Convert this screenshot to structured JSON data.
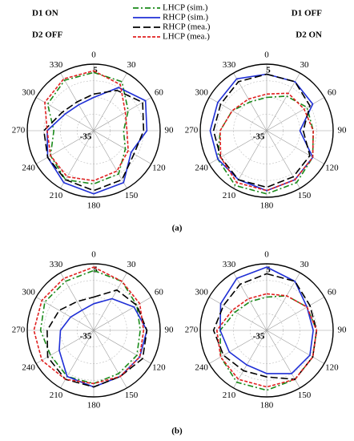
{
  "captions": [
    "(a)",
    "(b)"
  ],
  "chart_data": [
    {
      "type": "polar",
      "annotations": [
        "D1 ON",
        "D2 OFF"
      ],
      "theta": [
        0,
        30,
        60,
        90,
        120,
        150,
        180,
        210,
        240,
        270,
        300,
        330
      ],
      "thetaticks": [
        0,
        30,
        60,
        90,
        120,
        150,
        180,
        210,
        240,
        270,
        300,
        330
      ],
      "rlim": [
        -35,
        5
      ],
      "rticks": [
        -35,
        5
      ],
      "rgrid": [
        -25,
        -15,
        -5
      ],
      "series": [
        {
          "name": "LHCP (sim.)",
          "color": "#1a8a1a",
          "dash": "7,3,2,3",
          "values": [
            0,
            -1,
            -11,
            -17,
            -13,
            -5,
            -3,
            -1,
            -5,
            -11,
            -3,
            0
          ]
        },
        {
          "name": "RHCP (sim.)",
          "color": "#1f2fd6",
          "dash": "none",
          "values": [
            -15,
            -5,
            1,
            -3,
            -9,
            1,
            3,
            1,
            -3,
            -7,
            -15,
            -17
          ]
        },
        {
          "name": "RHCP (mea.)",
          "color": "#000000",
          "dash": "9,4",
          "values": [
            -13,
            -7,
            -1,
            -5,
            -7,
            -1,
            1,
            -1,
            -3,
            -5,
            -13,
            -15
          ]
        },
        {
          "name": "LHCP (mea.)",
          "color": "#e02020",
          "dash": "4,2",
          "values": [
            1,
            -3,
            -13,
            -15,
            -11,
            -7,
            -5,
            -3,
            -5,
            -7,
            -1,
            1
          ]
        }
      ]
    },
    {
      "type": "polar",
      "annotations": [
        "D1 OFF",
        "D2 ON"
      ],
      "theta": [
        0,
        30,
        60,
        90,
        120,
        150,
        180,
        210,
        240,
        270,
        300,
        330
      ],
      "thetaticks": [
        0,
        30,
        60,
        90,
        120,
        150,
        180,
        210,
        240,
        270,
        300,
        330
      ],
      "rlim": [
        -35,
        5
      ],
      "rticks": [
        -35,
        5
      ],
      "rgrid": [
        -25,
        -15,
        -5
      ],
      "series": [
        {
          "color": "#1a8a1a",
          "dash": "7,3,2,3",
          "values": [
            -15,
            -11,
            -7,
            -7,
            -3,
            1,
            3,
            3,
            -1,
            -7,
            -11,
            -15
          ]
        },
        {
          "color": "#1f2fd6",
          "dash": "none",
          "values": [
            -1,
            -1,
            -3,
            -15,
            -3,
            -1,
            1,
            -1,
            -1,
            -1,
            -1,
            1
          ]
        },
        {
          "color": "#000000",
          "dash": "9,4",
          "values": [
            -1,
            -1,
            -5,
            -13,
            -5,
            -3,
            -1,
            -1,
            -3,
            -3,
            -3,
            -1
          ]
        },
        {
          "color": "#e02020",
          "dash": "4,2",
          "values": [
            -13,
            -9,
            -9,
            -7,
            -3,
            -1,
            1,
            1,
            -3,
            -7,
            -11,
            -13
          ]
        }
      ]
    },
    {
      "type": "polar",
      "theta": [
        0,
        30,
        60,
        90,
        120,
        150,
        180,
        210,
        240,
        270,
        300,
        330
      ],
      "thetaticks": [
        0,
        30,
        60,
        90,
        120,
        150,
        180,
        210,
        240,
        270,
        300,
        330
      ],
      "rlim": [
        -35,
        5
      ],
      "rticks": [
        -35,
        5
      ],
      "rgrid": [
        -25,
        -15,
        -5
      ],
      "series": [
        {
          "color": "#1a8a1a",
          "dash": "7,3,2,3",
          "values": [
            1,
            -1,
            -5,
            -7,
            -5,
            -5,
            -3,
            -3,
            -5,
            -3,
            -1,
            -1
          ]
        },
        {
          "color": "#1f2fd6",
          "dash": "none",
          "values": [
            -19,
            -13,
            -7,
            -3,
            -3,
            -3,
            -1,
            -3,
            -11,
            -15,
            -19,
            -21
          ]
        },
        {
          "color": "#000000",
          "dash": "9,4",
          "values": [
            -15,
            -7,
            -5,
            -3,
            -1,
            -3,
            -1,
            -1,
            -3,
            -7,
            -11,
            -15
          ]
        },
        {
          "color": "#e02020",
          "dash": "4,2",
          "values": [
            3,
            -1,
            -3,
            -5,
            -3,
            -3,
            -3,
            -1,
            1,
            1,
            1,
            1
          ]
        }
      ]
    },
    {
      "type": "polar",
      "theta": [
        0,
        30,
        60,
        90,
        120,
        150,
        180,
        210,
        240,
        270,
        300,
        330
      ],
      "thetaticks": [
        0,
        30,
        60,
        90,
        120,
        150,
        180,
        210,
        240,
        270,
        300,
        330
      ],
      "rlim": [
        -35,
        5
      ],
      "rticks": [
        -35,
        5
      ],
      "rgrid": [
        -25,
        -15,
        -5
      ],
      "series": [
        {
          "color": "#1a8a1a",
          "dash": "7,3,2,3",
          "values": [
            -15,
            -11,
            -7,
            -5,
            -3,
            -1,
            1,
            1,
            -3,
            -7,
            -13,
            -15
          ]
        },
        {
          "color": "#1f2fd6",
          "dash": "none",
          "values": [
            3,
            -1,
            -7,
            -7,
            -5,
            -5,
            -9,
            -11,
            -9,
            -7,
            -3,
            1
          ]
        },
        {
          "color": "#000000",
          "dash": "9,4",
          "values": [
            -1,
            -1,
            -5,
            -5,
            -3,
            -1,
            -7,
            -7,
            -5,
            -3,
            -5,
            -3
          ]
        },
        {
          "color": "#e02020",
          "dash": "4,2",
          "values": [
            -13,
            -11,
            -7,
            -5,
            -3,
            -1,
            -1,
            -1,
            -3,
            -5,
            -11,
            -13
          ]
        }
      ]
    }
  ]
}
